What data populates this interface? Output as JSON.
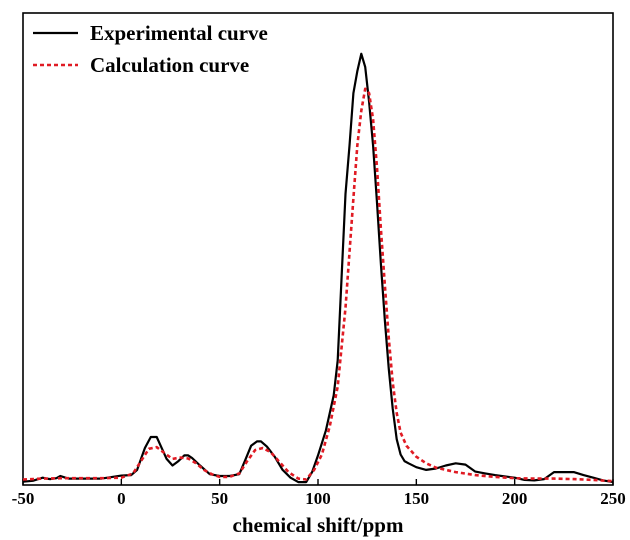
{
  "chart_data": {
    "type": "line",
    "xlabel": "chemical shift/ppm",
    "ylabel": "",
    "xlim": [
      -50,
      250
    ],
    "ylim": [
      0,
      1.0
    ],
    "xticks": [
      -50,
      0,
      50,
      100,
      150,
      200,
      250
    ],
    "yticks_visible": false,
    "grid": false,
    "legend_position": "top-left",
    "series": [
      {
        "name": "Experimental curve",
        "color": "#000000",
        "style": "solid",
        "x": [
          -50,
          -45,
          -40,
          -38,
          -36,
          -33,
          -31,
          -29,
          -27,
          -20,
          -10,
          0,
          5,
          8,
          12,
          15,
          18,
          20,
          23,
          26,
          29,
          32,
          34,
          36,
          40,
          45,
          50,
          55,
          60,
          63,
          66,
          69,
          71,
          74,
          78,
          82,
          86,
          90,
          94,
          97,
          100,
          104,
          108,
          110,
          112,
          114,
          116,
          118,
          120,
          122,
          124,
          126,
          128,
          130,
          132,
          134,
          136,
          138,
          140,
          142,
          144,
          146,
          150,
          155,
          160,
          165,
          170,
          175,
          180,
          185,
          190,
          200,
          205,
          210,
          215,
          220,
          225,
          230,
          235,
          240,
          245,
          250
        ],
        "y": [
          0.003,
          0.005,
          0.012,
          0.01,
          0.009,
          0.011,
          0.016,
          0.013,
          0.01,
          0.01,
          0.01,
          0.017,
          0.018,
          0.03,
          0.08,
          0.105,
          0.105,
          0.085,
          0.055,
          0.04,
          0.05,
          0.063,
          0.063,
          0.057,
          0.04,
          0.02,
          0.016,
          0.016,
          0.02,
          0.052,
          0.085,
          0.095,
          0.095,
          0.083,
          0.06,
          0.03,
          0.012,
          0.002,
          0.002,
          0.025,
          0.063,
          0.12,
          0.2,
          0.28,
          0.47,
          0.66,
          0.77,
          0.89,
          0.94,
          0.98,
          0.95,
          0.87,
          0.77,
          0.64,
          0.5,
          0.37,
          0.26,
          0.17,
          0.1,
          0.065,
          0.05,
          0.045,
          0.036,
          0.03,
          0.033,
          0.04,
          0.045,
          0.042,
          0.026,
          0.022,
          0.018,
          0.012,
          0.007,
          0.006,
          0.009,
          0.025,
          0.025,
          0.025,
          0.018,
          0.012,
          0.006,
          0.002
        ]
      },
      {
        "name": "Calculation curve",
        "color": "#e01b24",
        "style": "dotted",
        "x": [
          -50,
          -40,
          -30,
          -20,
          -10,
          0,
          6,
          10,
          14,
          18,
          22,
          26,
          30,
          34,
          38,
          42,
          46,
          50,
          55,
          60,
          64,
          68,
          72,
          76,
          80,
          85,
          90,
          94,
          98,
          102,
          106,
          110,
          114,
          118,
          120,
          122,
          124,
          126,
          128,
          130,
          132,
          134,
          136,
          138,
          140,
          142,
          145,
          150,
          155,
          160,
          170,
          180,
          190,
          200,
          210,
          220,
          230,
          240,
          250
        ],
        "y": [
          0.008,
          0.01,
          0.011,
          0.011,
          0.011,
          0.012,
          0.022,
          0.05,
          0.078,
          0.082,
          0.068,
          0.055,
          0.058,
          0.056,
          0.045,
          0.03,
          0.02,
          0.014,
          0.014,
          0.022,
          0.05,
          0.075,
          0.08,
          0.07,
          0.05,
          0.025,
          0.01,
          0.008,
          0.03,
          0.065,
          0.13,
          0.22,
          0.4,
          0.65,
          0.77,
          0.85,
          0.9,
          0.89,
          0.83,
          0.72,
          0.58,
          0.45,
          0.33,
          0.23,
          0.16,
          0.115,
          0.085,
          0.06,
          0.045,
          0.035,
          0.025,
          0.018,
          0.014,
          0.011,
          0.01,
          0.01,
          0.009,
          0.007,
          0.004
        ]
      }
    ]
  }
}
